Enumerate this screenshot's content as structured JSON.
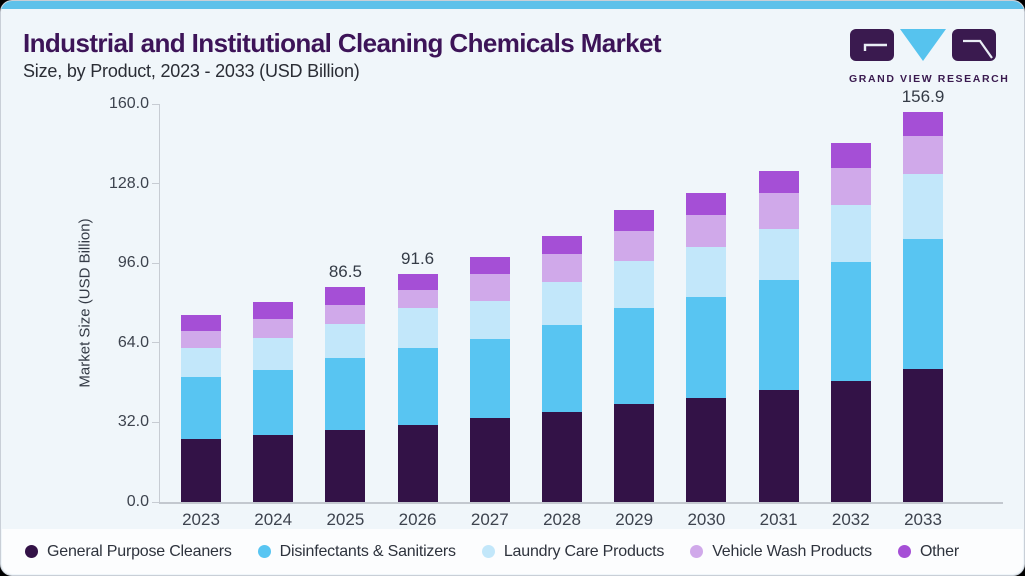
{
  "header": {
    "title": "Industrial and Institutional Cleaning Chemicals Market",
    "subtitle": "Size, by Product, 2023 - 2033 (USD Billion)",
    "logo_text": "GRAND VIEW RESEARCH"
  },
  "colors": {
    "accent_bar": "#5ec1ea",
    "card_bg": "#f0f6fa",
    "footer_bg": "#fcfdfe",
    "title": "#3d1458",
    "subtitle": "#2a2d35",
    "axis_text": "#3d434e",
    "axis_line": "#c7ccd3",
    "logo_dark": "#3a1a4f",
    "logo_blue": "#56c3ee"
  },
  "chart_data": {
    "type": "bar",
    "stacked": true,
    "title": "Industrial and Institutional Cleaning Chemicals Market Size, by Product, 2023 - 2033 (USD Billion)",
    "xlabel": "",
    "ylabel": "Market Size (USD Billion)",
    "ylim": [
      0,
      160
    ],
    "ytick_step": 32,
    "ytick_labels": [
      "0.0",
      "32.0",
      "64.0",
      "96.0",
      "128.0",
      "160.0"
    ],
    "grid": false,
    "legend_position": "bottom",
    "categories": [
      "2023",
      "2024",
      "2025",
      "2026",
      "2027",
      "2028",
      "2029",
      "2030",
      "2031",
      "2032",
      "2033"
    ],
    "series": [
      {
        "name": "General Purpose Cleaners",
        "color": "#331247",
        "values": [
          25.4,
          27.0,
          29.1,
          30.8,
          33.6,
          36.2,
          39.4,
          41.9,
          45.0,
          48.7,
          53.6
        ]
      },
      {
        "name": "Disinfectants & Sanitizers",
        "color": "#58c5f2",
        "values": [
          24.8,
          26.0,
          28.7,
          31.2,
          31.9,
          34.8,
          38.7,
          40.7,
          44.1,
          47.8,
          52.0
        ]
      },
      {
        "name": "Laundry Care Products",
        "color": "#c2e7fa",
        "values": [
          11.8,
          12.8,
          13.9,
          15.8,
          15.5,
          17.3,
          18.7,
          19.9,
          20.8,
          23.0,
          26.1
        ]
      },
      {
        "name": "Vehicle Wash Products",
        "color": "#d0a9ea",
        "values": [
          6.7,
          7.6,
          7.5,
          7.4,
          10.8,
          11.3,
          12.1,
          12.9,
          14.4,
          14.8,
          15.5
        ]
      },
      {
        "name": "Other",
        "color": "#a54fd6",
        "values": [
          6.3,
          6.9,
          7.3,
          6.4,
          6.5,
          7.3,
          8.4,
          8.8,
          8.8,
          9.9,
          9.7
        ]
      }
    ],
    "bar_value_labels": {
      "2025": "86.5",
      "2026": "91.6",
      "2033": "156.9"
    }
  }
}
